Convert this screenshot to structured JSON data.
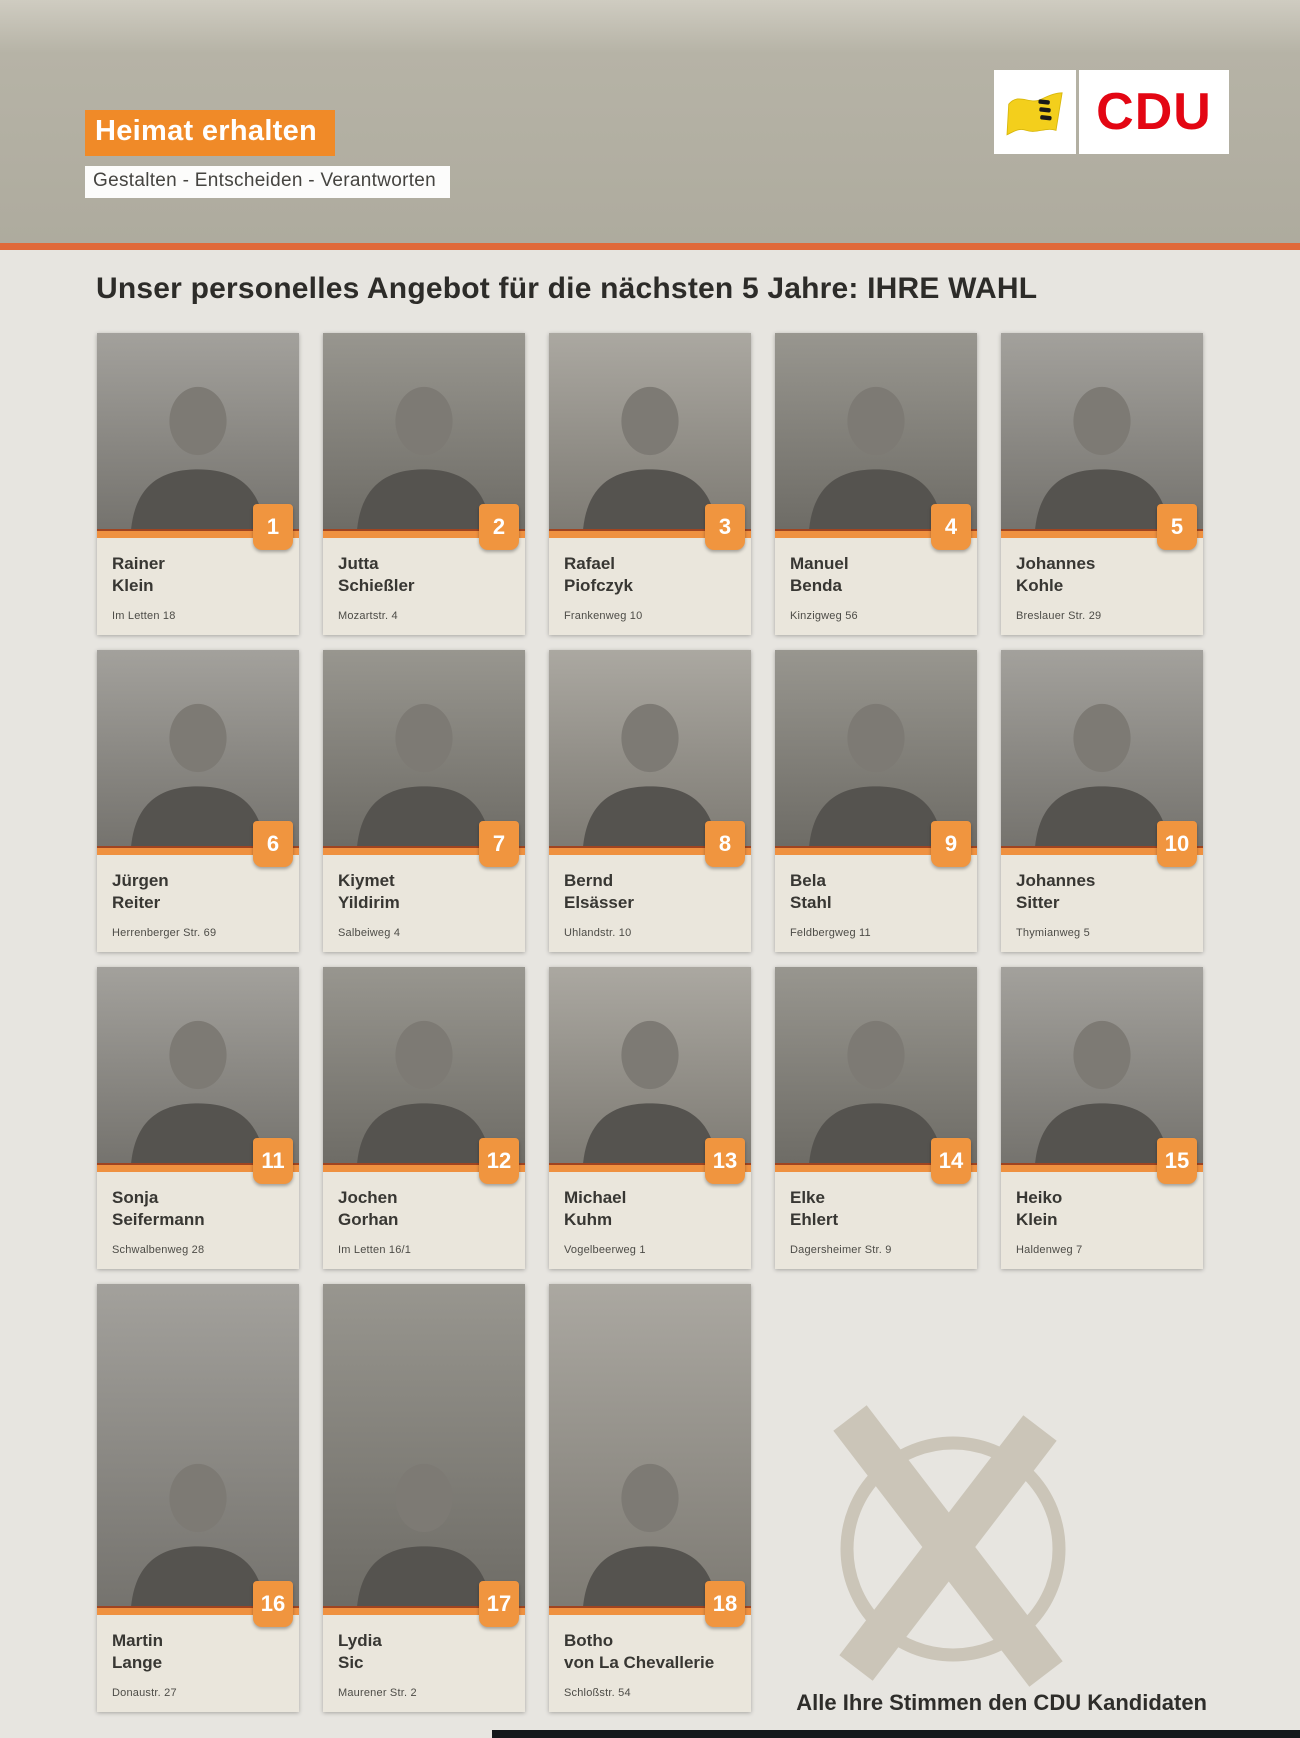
{
  "page": {
    "slogan": "Heimat erhalten",
    "tagline": "Gestalten - Entscheiden - Verantworten",
    "party": "CDU",
    "title": "Unser personelles Angebot für die nächsten 5 Jahre: IHRE WAHL",
    "cta": "Alle Ihre Stimmen den CDU Kandidaten"
  },
  "candidates": [
    {
      "number": "1",
      "first_name": "Rainer",
      "last_name": "Klein",
      "address": "Im Letten 18"
    },
    {
      "number": "2",
      "first_name": "Jutta",
      "last_name": "Schießler",
      "address": "Mozartstr. 4"
    },
    {
      "number": "3",
      "first_name": "Rafael",
      "last_name": "Piofczyk",
      "address": "Frankenweg 10"
    },
    {
      "number": "4",
      "first_name": "Manuel",
      "last_name": "Benda",
      "address": "Kinzigweg 56"
    },
    {
      "number": "5",
      "first_name": "Johannes",
      "last_name": "Kohle",
      "address": "Breslauer Str. 29"
    },
    {
      "number": "6",
      "first_name": "Jürgen",
      "last_name": "Reiter",
      "address": "Herrenberger Str. 69"
    },
    {
      "number": "7",
      "first_name": "Kiymet",
      "last_name": "Yildirim",
      "address": "Salbeiweg 4"
    },
    {
      "number": "8",
      "first_name": "Bernd",
      "last_name": "Elsässer",
      "address": "Uhlandstr. 10"
    },
    {
      "number": "9",
      "first_name": "Bela",
      "last_name": "Stahl",
      "address": "Feldbergweg 11"
    },
    {
      "number": "10",
      "first_name": "Johannes",
      "last_name": "Sitter",
      "address": "Thymianweg 5"
    },
    {
      "number": "11",
      "first_name": "Sonja",
      "last_name": "Seifermann",
      "address": "Schwalbenweg 28"
    },
    {
      "number": "12",
      "first_name": "Jochen",
      "last_name": "Gorhan",
      "address": "Im Letten 16/1"
    },
    {
      "number": "13",
      "first_name": "Michael",
      "last_name": "Kuhm",
      "address": "Vogelbeerweg 1"
    },
    {
      "number": "14",
      "first_name": "Elke",
      "last_name": "Ehlert",
      "address": "Dagersheimer Str. 9"
    },
    {
      "number": "15",
      "first_name": "Heiko",
      "last_name": "Klein",
      "address": "Haldenweg 7"
    },
    {
      "number": "16",
      "first_name": "Martin",
      "last_name": "Lange",
      "address": "Donaustr. 27"
    },
    {
      "number": "17",
      "first_name": "Lydia",
      "last_name": "Sic",
      "address": "Maurener Str. 2"
    },
    {
      "number": "18",
      "first_name": "Botho",
      "last_name": "von La Chevallerie",
      "address": "Schloßstr. 54"
    }
  ],
  "layout_rows": [
    5,
    5,
    5,
    3
  ],
  "colors": {
    "accent_orange": "#f08a28",
    "badge_orange": "#f0953f",
    "divider_orange": "#e0693a",
    "cdu_red": "#e30613",
    "flag_yellow": "#f3cf1c",
    "masthead_taupe": "#b3b0a3",
    "card_beige": "#eae6dc",
    "ballot_mark": "#cbc5b8"
  }
}
